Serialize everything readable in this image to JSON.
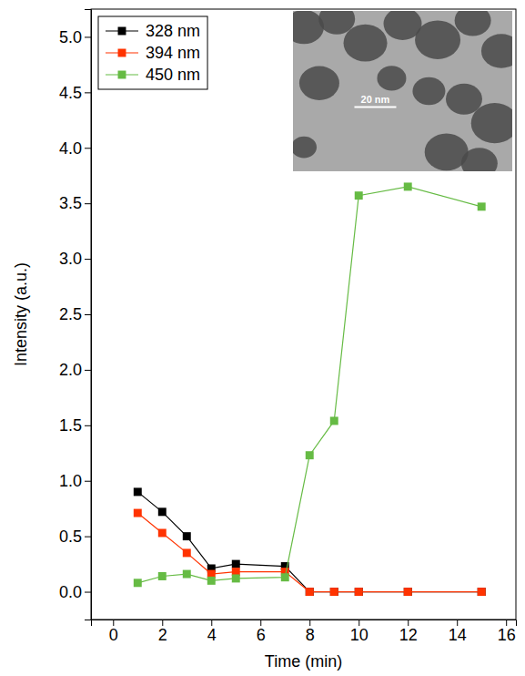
{
  "chart_data": {
    "type": "line",
    "x_label": "Time (min)",
    "y_label": "Intensity (a.u.)",
    "annotations": [
      "20 nm"
    ],
    "x": [
      1,
      2,
      3,
      4,
      5,
      7,
      8,
      9,
      10,
      12,
      15
    ],
    "series": [
      {
        "name": "328 nm",
        "color": "#000000",
        "marker": "square",
        "values": [
          0.9,
          0.72,
          0.5,
          0.21,
          0.25,
          0.23,
          0,
          0,
          0,
          0,
          0
        ]
      },
      {
        "name": "394 nm",
        "color": "#ff3300",
        "marker": "square",
        "values": [
          0.71,
          0.53,
          0.35,
          0.16,
          0.18,
          0.18,
          0,
          0,
          0,
          0,
          0
        ]
      },
      {
        "name": "450 nm",
        "color": "#66bb44",
        "marker": "square",
        "values": [
          0.08,
          0.14,
          0.16,
          0.1,
          0.12,
          0.13,
          1.23,
          1.54,
          3.57,
          3.65,
          3.47
        ]
      }
    ],
    "xlim": [
      -0.9,
      16.4
    ],
    "xticks": [
      0,
      2,
      4,
      6,
      8,
      10,
      12,
      14,
      16
    ],
    "ylim": [
      -0.25,
      5.25
    ],
    "yticks": [
      {
        "value": 0,
        "label": "0.0"
      },
      {
        "value": 0.5,
        "label": "0.5"
      },
      {
        "value": 1,
        "label": "1.0"
      },
      {
        "value": 1.5,
        "label": "1.5"
      },
      {
        "value": 2,
        "label": "2.0"
      },
      {
        "value": 2.5,
        "label": "2.5"
      },
      {
        "value": 3,
        "label": "3.0"
      },
      {
        "value": 3.5,
        "label": "3.5"
      },
      {
        "value": 4,
        "label": "4.0"
      },
      {
        "value": 4.5,
        "label": "4.5"
      },
      {
        "value": 5,
        "label": "5.0"
      }
    ],
    "legend": "upper left",
    "grid": false
  }
}
